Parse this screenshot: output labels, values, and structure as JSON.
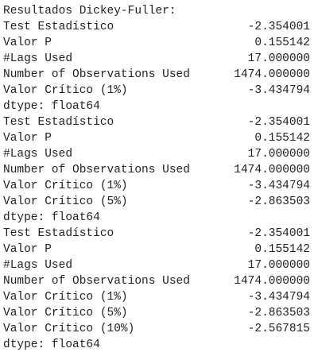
{
  "title": "Resultados Dickey-Fuller:",
  "blocks": [
    {
      "rows": [
        [
          "Test Estadístico",
          "-2.354001"
        ],
        [
          "Valor P",
          "0.155142"
        ],
        [
          "#Lags Used",
          "17.000000"
        ],
        [
          "Number of Observations Used",
          "1474.000000"
        ],
        [
          "Valor Crítico (1%)",
          "-3.434794"
        ]
      ],
      "footer": "dtype: float64"
    },
    {
      "rows": [
        [
          "Test Estadístico",
          "-2.354001"
        ],
        [
          "Valor P",
          "0.155142"
        ],
        [
          "#Lags Used",
          "17.000000"
        ],
        [
          "Number of Observations Used",
          "1474.000000"
        ],
        [
          "Valor Crítico (1%)",
          "-3.434794"
        ],
        [
          "Valor Crítico (5%)",
          "-2.863503"
        ]
      ],
      "footer": "dtype: float64"
    },
    {
      "rows": [
        [
          "Test Estadístico",
          "-2.354001"
        ],
        [
          "Valor P",
          "0.155142"
        ],
        [
          "#Lags Used",
          "17.000000"
        ],
        [
          "Number of Observations Used",
          "1474.000000"
        ],
        [
          "Valor Crítico (1%)",
          "-3.434794"
        ],
        [
          "Valor Crítico (5%)",
          "-2.863503"
        ],
        [
          "Valor Crítico (10%)",
          "-2.567815"
        ]
      ],
      "footer": "dtype: float64"
    }
  ]
}
